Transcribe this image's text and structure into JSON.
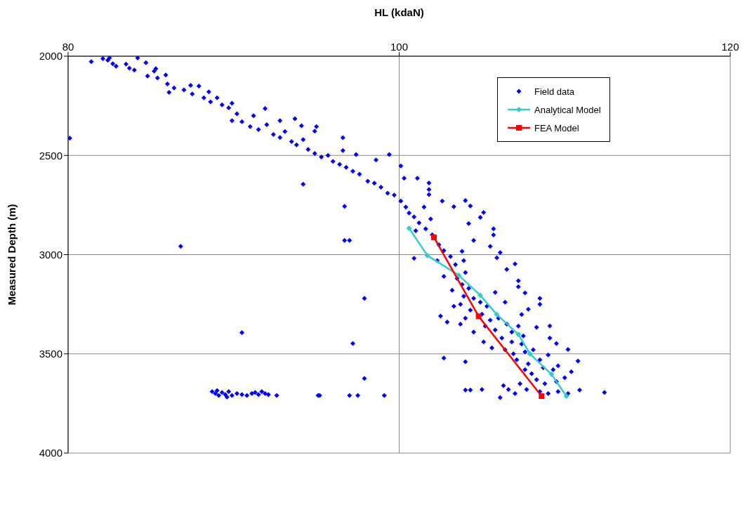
{
  "chart_data": {
    "type": "scatter",
    "xlabel": "HL (kdaN)",
    "ylabel": "Measured Depth (m)",
    "xlim": [
      80,
      120
    ],
    "xticks": [
      80,
      100,
      120
    ],
    "ylim": [
      4000,
      2000
    ],
    "yticks": [
      2000,
      2500,
      3000,
      3500,
      4000
    ],
    "grid": true,
    "legend": "top right",
    "line_style": "solid",
    "series": [
      {
        "name": "Field data",
        "marker": "diamond",
        "color": "#0000ff",
        "x": [
          80.1,
          81.4,
          82.1,
          82.4,
          82.5,
          84.2,
          82.7,
          82.9,
          83.5,
          83.7,
          84.0,
          84.7,
          85.2,
          84.8,
          85.4,
          85.9,
          86.0,
          86.4,
          86.1,
          87.0,
          87.5,
          87.9,
          88.2,
          88.6,
          89.0,
          89.3,
          89.9,
          89.7,
          90.2,
          90.5,
          91.2,
          91.0,
          91.5,
          92.0,
          92.4,
          92.8,
          93.1,
          93.5,
          93.8,
          94.2,
          94.5,
          94.9,
          95.3,
          95.7,
          95.0,
          93.7,
          96.0,
          96.4,
          96.8,
          97.2,
          97.6,
          98.1,
          98.5,
          98.9,
          99.3,
          96.6,
          94.2,
          96.7,
          99.4,
          97.4,
          98.6,
          96.6,
          94.9,
          94.1,
          91.9,
          92.8,
          89.9,
          88.5,
          87.4,
          85.3,
          100.1,
          100.3,
          101.1,
          101.8,
          101.8,
          101.8,
          102.6,
          104.0,
          104.3,
          103.3,
          105.1,
          104.9,
          104.2,
          105.7,
          105.7,
          104.5,
          105.5,
          106.1,
          105.9,
          107.0,
          106.5,
          103.8,
          100.9,
          99.7,
          100.1,
          100.4,
          100.6,
          100.9,
          101.2,
          101.6,
          101.0,
          102.0,
          101.5,
          101.9,
          102.4,
          102.7,
          103.1,
          102.3,
          103.4,
          103.9,
          104.0,
          102.7,
          103.5,
          103.8,
          104.2,
          103.2,
          103.9,
          104.5,
          104.9,
          103.7,
          104.3,
          105.3,
          105.8,
          106.4,
          107.2,
          107.2,
          107.6,
          108.5,
          108.5,
          107.8,
          107.4,
          105.0,
          105.5,
          106.0,
          106.5,
          105.2,
          105.8,
          106.8,
          107.2,
          106.2,
          106.8,
          107.5,
          107.4,
          109.1,
          108.3,
          109.1,
          109.5,
          110.2,
          110.8,
          109.0,
          104.0,
          106.4,
          106.9,
          107.6,
          108.1,
          107.1,
          107.8,
          108.5,
          107.6,
          108.0,
          108.7,
          109.3,
          109.6,
          108.3,
          108.8,
          109.5,
          110.0,
          110.4,
          107.3,
          107.7,
          106.3,
          106.6,
          107.0,
          108.5,
          109.0,
          109.6,
          110.2,
          110.9,
          112.4,
          102.7,
          104.0,
          104.3,
          105.0,
          106.1,
          102.9,
          102.5,
          104.5,
          105.1,
          105.6,
          103.7,
          104.0,
          103.3,
          86.8,
          90.5,
          96.7,
          97.0,
          97.9,
          97.2,
          97.9,
          88.7,
          88.9,
          89.1,
          89.3,
          89.5,
          89.7,
          89.9,
          90.2,
          90.5,
          90.8,
          91.1,
          91.3,
          91.5,
          91.7,
          91.9,
          92.1,
          92.6,
          89.0,
          89.6,
          95.1,
          95.2,
          97.0,
          97.5,
          99.1
        ],
        "values": [
          2413,
          2027,
          2012,
          2020,
          2009,
          2009,
          2038,
          2050,
          2040,
          2060,
          2070,
          2033,
          2075,
          2100,
          2110,
          2095,
          2140,
          2160,
          2182,
          2170,
          2190,
          2150,
          2210,
          2230,
          2210,
          2245,
          2325,
          2260,
          2290,
          2330,
          2300,
          2355,
          2370,
          2345,
          2395,
          2410,
          2380,
          2430,
          2447,
          2420,
          2470,
          2490,
          2508,
          2500,
          2355,
          2315,
          2530,
          2545,
          2560,
          2580,
          2595,
          2630,
          2640,
          2660,
          2690,
          2475,
          2645,
          2757,
          2496,
          2496,
          2523,
          2411,
          2378,
          2350,
          2264,
          2325,
          2237,
          2180,
          2147,
          2063,
          2553,
          2615,
          2615,
          2639,
          2672,
          2697,
          2730,
          2727,
          2755,
          2758,
          2788,
          2812,
          2843,
          2870,
          2901,
          2928,
          2958,
          2989,
          3016,
          3047,
          3074,
          2983,
          3019,
          2700,
          2730,
          2760,
          2790,
          2810,
          2840,
          2870,
          2880,
          2900,
          2760,
          2820,
          2950,
          2980,
          3010,
          3030,
          3050,
          3030,
          3090,
          3110,
          3120,
          3150,
          3170,
          3180,
          3210,
          3220,
          3240,
          3250,
          3280,
          3260,
          3190,
          3240,
          3132,
          3162,
          3193,
          3220,
          3250,
          3275,
          3302,
          3300,
          3330,
          3320,
          3350,
          3360,
          3380,
          3390,
          3360,
          3420,
          3440,
          3410,
          3450,
          3359,
          3366,
          3420,
          3448,
          3478,
          3536,
          3505,
          3540,
          3480,
          3500,
          3490,
          3480,
          3530,
          3550,
          3530,
          3580,
          3600,
          3570,
          3580,
          3560,
          3630,
          3650,
          3640,
          3620,
          3590,
          3650,
          3680,
          3660,
          3680,
          3700,
          3690,
          3700,
          3690,
          3700,
          3682,
          3695,
          3521,
          3682,
          3682,
          3680,
          3720,
          3340,
          3310,
          3390,
          3440,
          3470,
          3350,
          3320,
          3260,
          2958,
          3393,
          2928,
          2928,
          3220,
          3448,
          3624,
          3690,
          3700,
          3710,
          3695,
          3705,
          3690,
          3710,
          3700,
          3705,
          3710,
          3700,
          3695,
          3705,
          3690,
          3700,
          3705,
          3710,
          3685,
          3718,
          3710,
          3710,
          3710,
          3710,
          3710
        ]
      },
      {
        "name": "Analytical Model",
        "type": "line",
        "marker": "diamond",
        "color": "#33cccc",
        "x": [
          100.6,
          101.7,
          103.6,
          104.9,
          105.9,
          107.2,
          107.9,
          109.2,
          110.1
        ],
        "values": [
          2867,
          3004,
          3104,
          3205,
          3302,
          3402,
          3500,
          3603,
          3713
        ]
      },
      {
        "name": "FEA Model",
        "type": "line",
        "marker": "square",
        "color": "#ff0000",
        "x": [
          102.1,
          104.8,
          108.6
        ],
        "values": [
          2913,
          3311,
          3713
        ]
      }
    ]
  }
}
